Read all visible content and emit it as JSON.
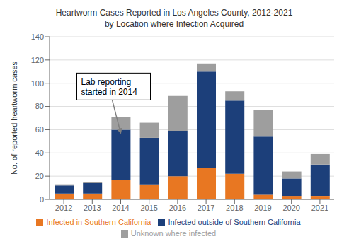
{
  "chart_data": {
    "type": "bar",
    "title": "Heartworm Cases Reported in Los Angeles County, 2012-2021",
    "subtitle": "by Location where Infection Acquired",
    "ylabel": "No. of reported heartworm cases",
    "categories": [
      2012,
      2013,
      2014,
      2015,
      2016,
      2017,
      2018,
      2019,
      2020,
      2021
    ],
    "series": [
      {
        "name": "Infected in Southern California",
        "color": "#E87722",
        "values": [
          5,
          5,
          17,
          13,
          20,
          27,
          22,
          4,
          3,
          3
        ]
      },
      {
        "name": "Infected outside of Southern California",
        "color": "#1C3F7A",
        "values": [
          7,
          9,
          43,
          40,
          39,
          83,
          63,
          50,
          15,
          27
        ]
      },
      {
        "name": "Unknown where infected",
        "color": "#9E9E9E",
        "values": [
          1,
          1,
          11,
          13,
          30,
          7,
          8,
          23,
          6,
          9
        ]
      }
    ],
    "ylim": [
      0,
      140
    ],
    "yticks": [
      0,
      20,
      40,
      60,
      80,
      100,
      120,
      140
    ],
    "stacked": true,
    "grid": true,
    "legend": "bottom",
    "annotations": [
      {
        "text": "Lab reporting\nstarted in 2014",
        "x": 2014,
        "y": 57
      }
    ]
  }
}
